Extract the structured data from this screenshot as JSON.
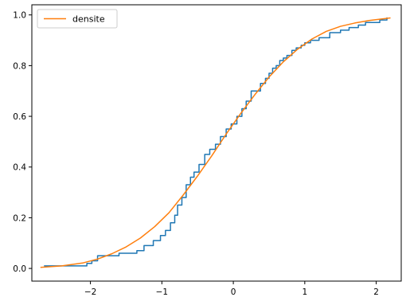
{
  "chart_data": {
    "type": "line",
    "title": "",
    "xlabel": "",
    "ylabel": "",
    "xlim": [
      -2.82,
      2.35
    ],
    "ylim": [
      -0.05,
      1.04
    ],
    "xticks": [
      -2,
      -1,
      0,
      1,
      2
    ],
    "xtick_labels": [
      "−2",
      "−1",
      "0",
      "1",
      "2"
    ],
    "yticks": [
      0.0,
      0.2,
      0.4,
      0.6,
      0.8,
      1.0
    ],
    "ytick_labels": [
      "0.0",
      "0.2",
      "0.4",
      "0.6",
      "0.8",
      "1.0"
    ],
    "grid": false,
    "legend": {
      "position": "top-left",
      "entries": [
        "densite"
      ]
    },
    "series": [
      {
        "kind": "step",
        "color": "#1f77b4",
        "x": [
          -2.65,
          -2.35,
          -2.05,
          -1.98,
          -1.9,
          -1.78,
          -1.6,
          -1.48,
          -1.35,
          -1.25,
          -1.12,
          -1.02,
          -0.95,
          -0.88,
          -0.82,
          -0.78,
          -0.72,
          -0.66,
          -0.6,
          -0.55,
          -0.48,
          -0.4,
          -0.33,
          -0.25,
          -0.18,
          -0.1,
          -0.03,
          0.05,
          0.12,
          0.18,
          0.25,
          0.3,
          0.38,
          0.45,
          0.5,
          0.55,
          0.6,
          0.65,
          0.7,
          0.75,
          0.82,
          0.88,
          0.95,
          1.0,
          1.08,
          1.2,
          1.35,
          1.5,
          1.62,
          1.75,
          1.85,
          1.95,
          2.05,
          2.15
        ],
        "y": [
          0.01,
          0.01,
          0.02,
          0.03,
          0.05,
          0.05,
          0.06,
          0.06,
          0.07,
          0.09,
          0.11,
          0.13,
          0.15,
          0.18,
          0.21,
          0.25,
          0.28,
          0.33,
          0.36,
          0.38,
          0.41,
          0.45,
          0.47,
          0.49,
          0.52,
          0.55,
          0.57,
          0.6,
          0.63,
          0.66,
          0.7,
          0.7,
          0.73,
          0.75,
          0.77,
          0.79,
          0.8,
          0.82,
          0.83,
          0.84,
          0.86,
          0.87,
          0.88,
          0.89,
          0.9,
          0.91,
          0.93,
          0.94,
          0.95,
          0.96,
          0.97,
          0.97,
          0.98,
          0.99
        ]
      },
      {
        "name": "densite",
        "kind": "line",
        "color": "#ff7f0e",
        "x": [
          -2.7,
          -2.4,
          -2.1,
          -1.9,
          -1.7,
          -1.5,
          -1.3,
          -1.1,
          -0.9,
          -0.7,
          -0.5,
          -0.3,
          -0.1,
          0.1,
          0.3,
          0.5,
          0.7,
          0.9,
          1.1,
          1.3,
          1.5,
          1.7,
          1.9,
          2.2
        ],
        "y": [
          0.004,
          0.01,
          0.022,
          0.037,
          0.058,
          0.085,
          0.12,
          0.165,
          0.22,
          0.29,
          0.365,
          0.445,
          0.53,
          0.61,
          0.685,
          0.755,
          0.815,
          0.865,
          0.905,
          0.935,
          0.955,
          0.968,
          0.978,
          0.988
        ]
      }
    ]
  }
}
